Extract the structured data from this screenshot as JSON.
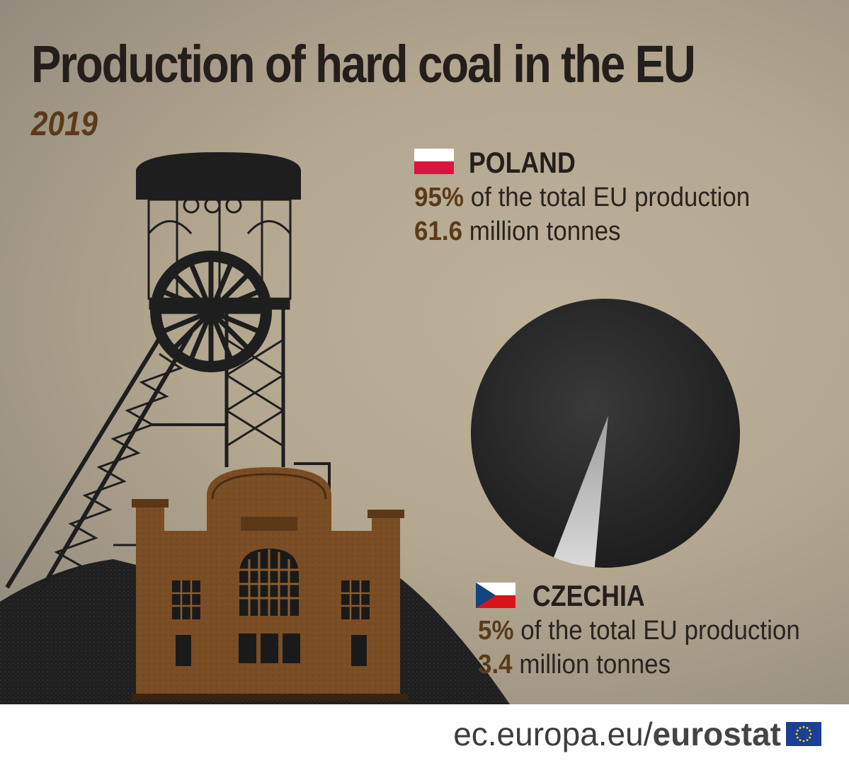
{
  "title": "Production of hard coal in the EU",
  "year": "2019",
  "poland": {
    "name": "POLAND",
    "share": "95%",
    "share_text": "of the total EU production",
    "amount": "61.6",
    "amount_text": "million tonnes"
  },
  "czechia": {
    "name": "CZECHIA",
    "share": "5%",
    "share_text": "of the total EU production",
    "amount": "3.4",
    "amount_text": "million tonnes"
  },
  "chart_data": {
    "type": "pie",
    "categories": [
      "POLAND",
      "CZECHIA"
    ],
    "values": [
      95,
      5
    ],
    "amounts_million_tonnes": [
      61.6,
      3.4
    ],
    "colors": [
      "#2c2c2c",
      "#c9c9c9"
    ]
  },
  "footer": {
    "url_prefix": "ec.europa.eu/",
    "brand": "eurostat"
  },
  "icons": {
    "eu_flag": "eu-flag-icon",
    "poland_flag": "poland-flag-icon",
    "czechia_flag": "czechia-flag-icon"
  }
}
